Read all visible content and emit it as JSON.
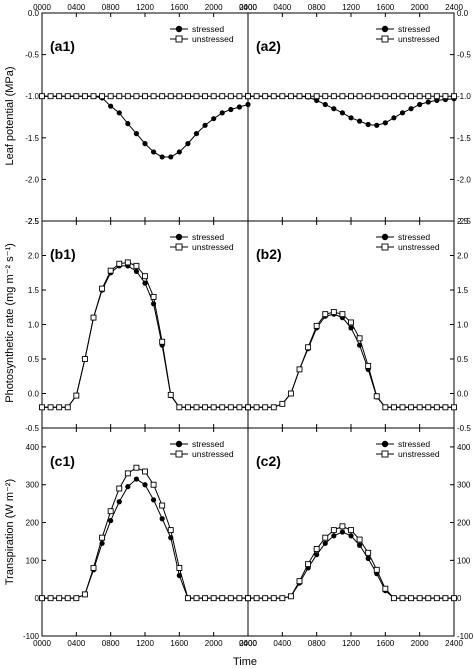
{
  "figure": {
    "x_title": "Time",
    "x_ticks": [
      "0000",
      "0400",
      "0800",
      "1200",
      "1600",
      "2000",
      "2400"
    ],
    "legend": [
      "stressed",
      "unstressed"
    ]
  },
  "chart_data": [
    {
      "type": "line",
      "panel": "a1",
      "label": "(a1)",
      "xlabel": "Time",
      "ylabel": "Leaf potential (MPa)",
      "xlim": [
        0,
        2400
      ],
      "ylim": [
        -2.5,
        0
      ],
      "yticks": [
        "0.0",
        "-0.5",
        "-1.0",
        "-1.5",
        "-2.0",
        "-2.5"
      ],
      "x": [
        0,
        100,
        200,
        300,
        400,
        500,
        600,
        700,
        800,
        900,
        1000,
        1100,
        1200,
        1300,
        1400,
        1500,
        1600,
        1700,
        1800,
        1900,
        2000,
        2100,
        2200,
        2300,
        2400
      ],
      "series": [
        {
          "name": "stressed",
          "marker": "filled-circle",
          "values": [
            -1.0,
            -1.0,
            -1.0,
            -1.0,
            -1.0,
            -1.0,
            -1.0,
            -1.02,
            -1.12,
            -1.2,
            -1.33,
            -1.45,
            -1.57,
            -1.67,
            -1.73,
            -1.73,
            -1.67,
            -1.57,
            -1.45,
            -1.35,
            -1.27,
            -1.2,
            -1.16,
            -1.13,
            -1.1
          ]
        },
        {
          "name": "unstressed",
          "marker": "open-square",
          "values": [
            -1.0,
            -1.0,
            -1.0,
            -1.0,
            -1.0,
            -1.0,
            -1.0,
            -1.0,
            -1.0,
            -1.0,
            -1.0,
            -1.0,
            -1.0,
            -1.0,
            -1.0,
            -1.0,
            -1.0,
            -1.0,
            -1.0,
            -1.0,
            -1.0,
            -1.0,
            -1.0,
            -1.0,
            -1.0
          ]
        }
      ]
    },
    {
      "type": "line",
      "panel": "a2",
      "label": "(a2)",
      "xlim": [
        0,
        2400
      ],
      "ylim": [
        -2.5,
        0
      ],
      "yticks": [
        "0.0",
        "-0.5",
        "-1.0",
        "-1.5",
        "-2.0",
        "-2.5"
      ],
      "x": [
        0,
        100,
        200,
        300,
        400,
        500,
        600,
        700,
        800,
        900,
        1000,
        1100,
        1200,
        1300,
        1400,
        1500,
        1600,
        1700,
        1800,
        1900,
        2000,
        2100,
        2200,
        2300,
        2400
      ],
      "series": [
        {
          "name": "stressed",
          "marker": "filled-circle",
          "values": [
            -1.0,
            -1.0,
            -1.0,
            -1.0,
            -1.0,
            -1.0,
            -1.0,
            -1.01,
            -1.05,
            -1.1,
            -1.15,
            -1.2,
            -1.26,
            -1.3,
            -1.34,
            -1.35,
            -1.32,
            -1.26,
            -1.2,
            -1.15,
            -1.1,
            -1.07,
            -1.05,
            -1.04,
            -1.03
          ]
        },
        {
          "name": "unstressed",
          "marker": "open-square",
          "values": [
            -1.0,
            -1.0,
            -1.0,
            -1.0,
            -1.0,
            -1.0,
            -1.0,
            -1.0,
            -1.0,
            -1.0,
            -1.0,
            -1.0,
            -1.0,
            -1.0,
            -1.0,
            -1.0,
            -1.0,
            -1.0,
            -1.0,
            -1.0,
            -1.0,
            -1.0,
            -1.0,
            -1.0,
            -1.0
          ]
        }
      ]
    },
    {
      "type": "line",
      "panel": "b1",
      "label": "(b1)",
      "ylabel": "Photosynthetic rate (mg m⁻² s⁻¹)",
      "xlim": [
        0,
        2400
      ],
      "ylim": [
        -0.5,
        2.5
      ],
      "yticks": [
        "-0.5",
        "0.0",
        "0.5",
        "1.0",
        "1.5",
        "2.0",
        "2.5"
      ],
      "x": [
        0,
        100,
        200,
        300,
        400,
        500,
        600,
        700,
        800,
        900,
        1000,
        1100,
        1200,
        1300,
        1400,
        1500,
        1600,
        1700,
        1800,
        1900,
        2000,
        2100,
        2200,
        2300,
        2400
      ],
      "series": [
        {
          "name": "stressed",
          "marker": "filled-circle",
          "values": [
            -0.2,
            -0.2,
            -0.2,
            -0.2,
            -0.03,
            0.5,
            1.1,
            1.5,
            1.75,
            1.85,
            1.85,
            1.77,
            1.6,
            1.3,
            0.7,
            -0.03,
            -0.2,
            -0.2,
            -0.2,
            -0.2,
            -0.2,
            -0.2,
            -0.2,
            -0.2,
            -0.2
          ]
        },
        {
          "name": "unstressed",
          "marker": "open-square",
          "values": [
            -0.2,
            -0.2,
            -0.2,
            -0.2,
            -0.03,
            0.5,
            1.1,
            1.52,
            1.78,
            1.88,
            1.9,
            1.85,
            1.7,
            1.4,
            0.75,
            -0.02,
            -0.2,
            -0.2,
            -0.2,
            -0.2,
            -0.2,
            -0.2,
            -0.2,
            -0.2,
            -0.2
          ]
        }
      ]
    },
    {
      "type": "line",
      "panel": "b2",
      "label": "(b2)",
      "xlim": [
        0,
        2400
      ],
      "ylim": [
        -0.5,
        2.5
      ],
      "yticks": [
        "-0.5",
        "0.0",
        "0.5",
        "1.0",
        "1.5",
        "2.0",
        "2.5"
      ],
      "x": [
        0,
        100,
        200,
        300,
        400,
        500,
        600,
        700,
        800,
        900,
        1000,
        1100,
        1200,
        1300,
        1400,
        1500,
        1600,
        1700,
        1800,
        1900,
        2000,
        2100,
        2200,
        2300,
        2400
      ],
      "series": [
        {
          "name": "stressed",
          "marker": "filled-circle",
          "values": [
            -0.2,
            -0.2,
            -0.2,
            -0.2,
            -0.15,
            0.0,
            0.35,
            0.65,
            0.95,
            1.12,
            1.15,
            1.1,
            0.95,
            0.7,
            0.35,
            -0.05,
            -0.2,
            -0.2,
            -0.2,
            -0.2,
            -0.2,
            -0.2,
            -0.2,
            -0.2,
            -0.2
          ]
        },
        {
          "name": "unstressed",
          "marker": "open-square",
          "values": [
            -0.2,
            -0.2,
            -0.2,
            -0.2,
            -0.15,
            0.0,
            0.35,
            0.67,
            0.98,
            1.15,
            1.18,
            1.15,
            1.03,
            0.8,
            0.4,
            -0.04,
            -0.2,
            -0.2,
            -0.2,
            -0.2,
            -0.2,
            -0.2,
            -0.2,
            -0.2,
            -0.2
          ]
        }
      ]
    },
    {
      "type": "line",
      "panel": "c1",
      "label": "(c1)",
      "ylabel": "Transpiration (W m⁻²)",
      "xlabel": "Time",
      "xlim": [
        0,
        2400
      ],
      "ylim": [
        -100,
        450
      ],
      "yticks": [
        "-100",
        "0",
        "100",
        "200",
        "300",
        "400"
      ],
      "x": [
        0,
        100,
        200,
        300,
        400,
        500,
        600,
        700,
        800,
        900,
        1000,
        1100,
        1200,
        1300,
        1400,
        1500,
        1600,
        1700,
        1800,
        1900,
        2000,
        2100,
        2200,
        2300,
        2400
      ],
      "series": [
        {
          "name": "stressed",
          "marker": "filled-circle",
          "values": [
            0,
            0,
            0,
            0,
            0,
            10,
            75,
            145,
            205,
            255,
            295,
            315,
            300,
            260,
            210,
            160,
            60,
            0,
            0,
            0,
            0,
            0,
            0,
            0,
            0
          ]
        },
        {
          "name": "unstressed",
          "marker": "open-square",
          "values": [
            0,
            0,
            0,
            0,
            0,
            10,
            80,
            160,
            230,
            290,
            330,
            345,
            335,
            300,
            245,
            180,
            80,
            0,
            0,
            0,
            0,
            0,
            0,
            0,
            0
          ]
        }
      ]
    },
    {
      "type": "line",
      "panel": "c2",
      "label": "(c2)",
      "xlim": [
        0,
        2400
      ],
      "ylim": [
        -100,
        450
      ],
      "yticks": [
        "-100",
        "0",
        "100",
        "200",
        "300",
        "400"
      ],
      "x": [
        0,
        100,
        200,
        300,
        400,
        500,
        600,
        700,
        800,
        900,
        1000,
        1100,
        1200,
        1300,
        1400,
        1500,
        1600,
        1700,
        1800,
        1900,
        2000,
        2100,
        2200,
        2300,
        2400
      ],
      "series": [
        {
          "name": "stressed",
          "marker": "filled-circle",
          "values": [
            0,
            0,
            0,
            0,
            0,
            5,
            40,
            80,
            115,
            145,
            165,
            175,
            165,
            140,
            105,
            65,
            20,
            0,
            0,
            0,
            0,
            0,
            0,
            0,
            0
          ]
        },
        {
          "name": "unstressed",
          "marker": "open-square",
          "values": [
            0,
            0,
            0,
            0,
            0,
            5,
            45,
            90,
            130,
            160,
            180,
            190,
            180,
            155,
            120,
            75,
            25,
            0,
            0,
            0,
            0,
            0,
            0,
            0,
            0
          ]
        }
      ]
    }
  ]
}
